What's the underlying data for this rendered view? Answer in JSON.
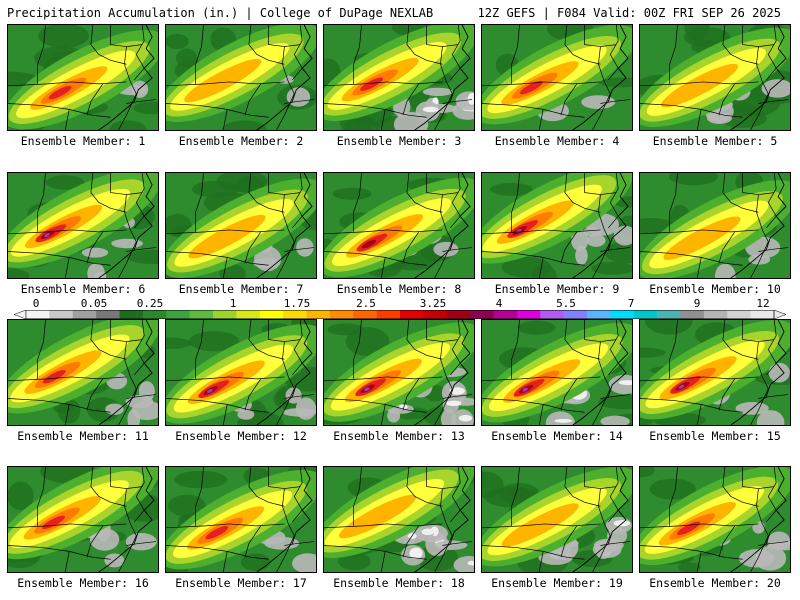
{
  "header": {
    "left": "Precipitation Accumulation (in.) | College of DuPage NEXLAB",
    "right": "12Z GEFS | F084 Valid: 00Z FRI SEP 26 2025"
  },
  "colorbar": {
    "labels": [
      "0",
      "0.05",
      "0.25",
      "1",
      "1.75",
      "2.5",
      "3.25",
      "4",
      "5.5",
      "7",
      "9",
      "12"
    ],
    "colors": [
      "#f4f4f4",
      "#c8c8c8",
      "#a0a0a0",
      "#787878",
      "#1e6e1e",
      "#2a8a2a",
      "#3ca43c",
      "#5cbc3c",
      "#9cd42c",
      "#d8e818",
      "#ffff00",
      "#ffdc00",
      "#ffb400",
      "#ff8c00",
      "#ff6400",
      "#ff3c00",
      "#e60000",
      "#c80000",
      "#a00014",
      "#8c0050",
      "#b40096",
      "#dc00dc",
      "#b45af0",
      "#8282ff",
      "#5ab4ff",
      "#00dcff",
      "#00c8c8",
      "#4ab4b4",
      "#909090",
      "#b4b4b4",
      "#d2d2d2",
      "#e8e8e8"
    ]
  },
  "palette": {
    "white": "#f0f0f0",
    "gray": "#b8b8b8",
    "darkgreen": "#1e6e1e",
    "green": "#2e8b2e",
    "lightgreen": "#4caf2e",
    "yellowgreen": "#a8d42c",
    "yellow": "#ffff3c",
    "orange": "#ffb400",
    "darkorange": "#ff7a00",
    "red": "#e62020",
    "darkred": "#a00014",
    "purple": "#9040c0",
    "boundary": "#000000"
  },
  "members": [
    {
      "label": "Ensemble Member: 1",
      "intensity": 3,
      "purple": false,
      "gray": 1
    },
    {
      "label": "Ensemble Member: 2",
      "intensity": 2,
      "purple": false,
      "gray": 1
    },
    {
      "label": "Ensemble Member: 3",
      "intensity": 3,
      "purple": false,
      "gray": 3
    },
    {
      "label": "Ensemble Member: 4",
      "intensity": 3,
      "purple": false,
      "gray": 1
    },
    {
      "label": "Ensemble Member: 5",
      "intensity": 2,
      "purple": false,
      "gray": 2
    },
    {
      "label": "Ensemble Member: 6",
      "intensity": 4,
      "purple": true,
      "gray": 2
    },
    {
      "label": "Ensemble Member: 7",
      "intensity": 2,
      "purple": false,
      "gray": 2
    },
    {
      "label": "Ensemble Member: 8",
      "intensity": 4,
      "purple": false,
      "gray": 1
    },
    {
      "label": "Ensemble Member: 9",
      "intensity": 4,
      "purple": true,
      "gray": 2
    },
    {
      "label": "Ensemble Member: 10",
      "intensity": 2,
      "purple": false,
      "gray": 1
    },
    {
      "label": "Ensemble Member: 11",
      "intensity": 3,
      "purple": false,
      "gray": 2
    },
    {
      "label": "Ensemble Member: 12",
      "intensity": 4,
      "purple": true,
      "gray": 2
    },
    {
      "label": "Ensemble Member: 13",
      "intensity": 4,
      "purple": true,
      "gray": 3
    },
    {
      "label": "Ensemble Member: 14",
      "intensity": 4,
      "purple": true,
      "gray": 3
    },
    {
      "label": "Ensemble Member: 15",
      "intensity": 4,
      "purple": true,
      "gray": 2
    },
    {
      "label": "Ensemble Member: 16",
      "intensity": 3,
      "purple": false,
      "gray": 2
    },
    {
      "label": "Ensemble Member: 17",
      "intensity": 3,
      "purple": false,
      "gray": 2
    },
    {
      "label": "Ensemble Member: 18",
      "intensity": 2,
      "purple": false,
      "gray": 3
    },
    {
      "label": "Ensemble Member: 19",
      "intensity": 2,
      "purple": false,
      "gray": 3
    },
    {
      "label": "Ensemble Member: 20",
      "intensity": 3,
      "purple": false,
      "gray": 2
    }
  ]
}
